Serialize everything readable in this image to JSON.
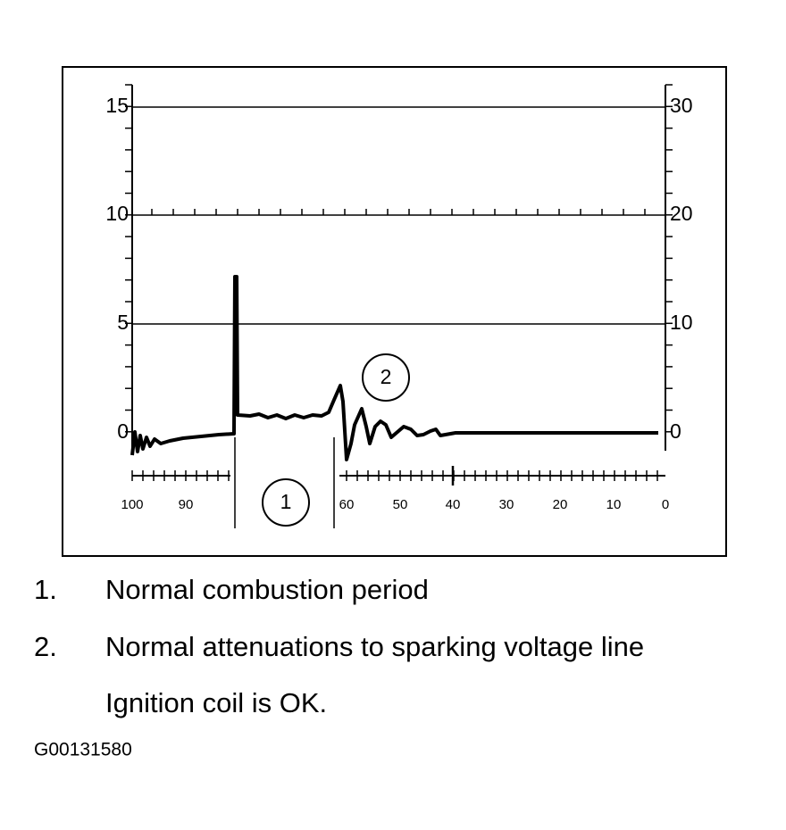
{
  "diagram": {
    "left_axis_labels": [
      15,
      10,
      5,
      0
    ],
    "right_axis_labels": [
      30,
      20,
      10,
      0
    ],
    "bottom_axis_labels": [
      100,
      90,
      60,
      50,
      40,
      30,
      20,
      10,
      0
    ],
    "callouts": [
      1,
      2
    ]
  },
  "legend": {
    "items": [
      {
        "number": "1.",
        "text": "Normal combustion period"
      },
      {
        "number": "2.",
        "text": "Normal attenuations to sparking voltage line"
      }
    ],
    "note": "Ignition coil is OK."
  },
  "figure_id": "G00131580"
}
